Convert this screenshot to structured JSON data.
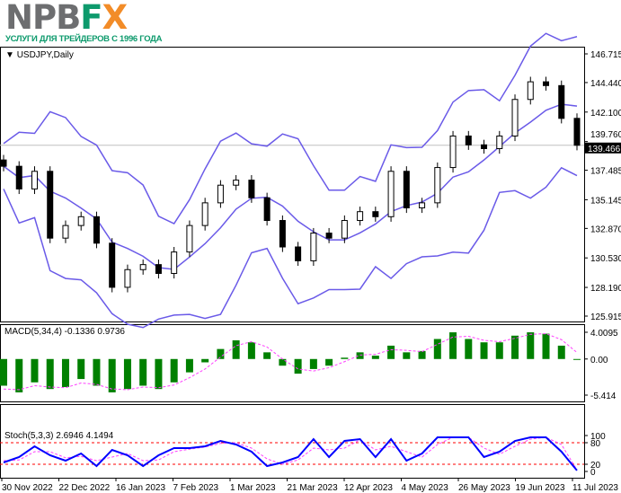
{
  "logo": {
    "text": "NPBFX",
    "tagline": "УСЛУГИ ДЛЯ ТРЕЙДЕРОВ С 1996 ГОДА"
  },
  "colors": {
    "bull": "#000000",
    "bear": "#000000",
    "bands": "#6a5ae8",
    "macd_hist": "#008000",
    "macd_signal": "#ff40ff",
    "stoch_main": "#0000ff",
    "stoch_signal": "#ff40ff",
    "levels": "#ff0000",
    "price_line": "#c0c0c0"
  },
  "chart_data": [
    {
      "type": "candlestick",
      "title": "USDJPY,Daily",
      "symbol": "USDJPY",
      "timeframe": "Daily",
      "ylim": [
        125.915,
        146.715
      ],
      "y_ticks": [
        "146.715",
        "144.440",
        "142.100",
        "139.760",
        "137.485",
        "135.145",
        "132.870",
        "130.530",
        "128.190",
        "125.915"
      ],
      "current_price": "139.466",
      "closes": [
        137.8,
        136.0,
        137.4,
        132.1,
        133.1,
        133.8,
        131.7,
        128.2,
        129.6,
        130.0,
        129.3,
        131.0,
        133.1,
        134.9,
        136.3,
        136.7,
        135.3,
        133.5,
        131.4,
        130.3,
        132.5,
        132.1,
        133.5,
        134.2,
        133.8,
        137.4,
        134.5,
        134.9,
        137.7,
        140.2,
        139.5,
        139.2,
        140.2,
        143.1,
        144.5,
        144.2,
        141.6,
        139.466
      ],
      "overlay": "Bollinger Bands"
    },
    {
      "type": "bar",
      "title": "MACD(5,34,4) -0.1336 0.9736",
      "ylim": [
        -5.414,
        4.0095
      ],
      "y_ticks": [
        "4.0095",
        "0.00",
        "-5.414"
      ],
      "histogram": [
        -4,
        -5,
        -3.5,
        -4.5,
        -4.2,
        -3,
        -4,
        -5,
        -4.5,
        -4,
        -4.5,
        -3.5,
        -2,
        -0.5,
        1.5,
        2.8,
        2.5,
        1,
        -1,
        -2.2,
        -1.5,
        -1,
        0.2,
        1,
        0.5,
        2,
        1,
        1.2,
        3,
        4,
        3,
        2.5,
        2.5,
        3.5,
        4,
        3.8,
        2,
        -0.1336
      ],
      "signal": [
        -4.5,
        -4.6,
        -4,
        -4.2,
        -4.3,
        -3.6,
        -3.8,
        -4.5,
        -4.6,
        -4.2,
        -4.3,
        -3.9,
        -2.8,
        -1.5,
        0.3,
        2,
        2.6,
        1.8,
        0,
        -1.5,
        -1.8,
        -1.3,
        -0.4,
        0.6,
        0.7,
        1.4,
        1.3,
        1.1,
        2.2,
        3.3,
        3.4,
        2.8,
        2.6,
        3.1,
        3.7,
        3.8,
        2.9,
        0.9736
      ]
    },
    {
      "type": "line",
      "title": "Stoch(5,3,3) 2.6946 4.1494",
      "ylim": [
        0,
        100
      ],
      "y_ticks": [
        "100",
        "80",
        "20",
        "0"
      ],
      "levels": [
        80,
        20
      ],
      "main": [
        25,
        40,
        70,
        45,
        30,
        50,
        15,
        60,
        45,
        15,
        45,
        65,
        65,
        70,
        85,
        75,
        55,
        15,
        25,
        40,
        90,
        40,
        85,
        90,
        40,
        90,
        30,
        50,
        95,
        95,
        95,
        40,
        55,
        85,
        95,
        95,
        55,
        2.6946
      ],
      "signal": [
        30,
        32,
        55,
        55,
        38,
        42,
        30,
        40,
        50,
        30,
        32,
        55,
        62,
        68,
        78,
        80,
        65,
        35,
        20,
        32,
        65,
        60,
        65,
        88,
        60,
        70,
        55,
        40,
        75,
        95,
        95,
        65,
        48,
        70,
        90,
        95,
        75,
        4.1494
      ]
    }
  ],
  "x_labels": [
    "30 Nov 2022",
    "22 Dec 2022",
    "16 Jan 2023",
    "7 Feb 2023",
    "1 Mar 2023",
    "21 Mar 2023",
    "12 Apr 2023",
    "4 May 2023",
    "26 May 2023",
    "19 Jun 2023",
    "11 Jul 2023"
  ]
}
